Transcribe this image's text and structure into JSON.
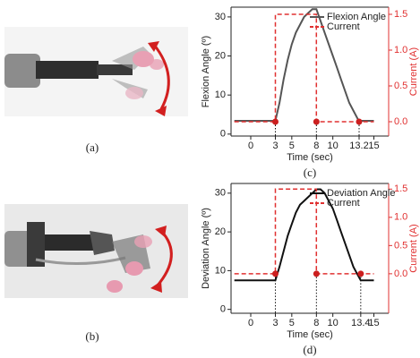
{
  "figure": {
    "photo_labels": [
      "(a)",
      "(b)"
    ]
  },
  "chart_data": [
    {
      "type": "line",
      "caption": "(c)",
      "x_label": "Time (sec)",
      "y_label": "Flexion Angle (º)",
      "y2_label": "Current (A)",
      "xlim": [
        -2.4,
        16.8
      ],
      "xticks": [
        0,
        3,
        5,
        8,
        10,
        13.2,
        15
      ],
      "ylim": [
        -0.5,
        32.5
      ],
      "yticks": [
        0,
        10,
        20,
        30
      ],
      "y2lim": [
        -0.2,
        1.6
      ],
      "y2ticks": [
        {
          "value": 0,
          "label": "0.0"
        },
        0.5,
        {
          "value": 1,
          "label": "1.0"
        },
        1.5
      ],
      "legend": "upper right",
      "series": [
        {
          "name": "Flexion Angle",
          "color": "#555555",
          "dash": false,
          "x": [
            -2,
            3,
            3.5,
            4,
            4.5,
            5,
            5.5,
            6,
            6.5,
            7,
            7.5,
            8,
            8.5,
            9,
            9.5,
            10,
            10.5,
            11,
            11.5,
            12,
            12.5,
            13,
            13.2,
            14,
            15
          ],
          "values": [
            3.4,
            3.4,
            8,
            14,
            19,
            23,
            26,
            28,
            30,
            31,
            32,
            32,
            29,
            26,
            23,
            20,
            17,
            14,
            11,
            8,
            6,
            4,
            3.4,
            3.4,
            3.4
          ]
        },
        {
          "name": "Current",
          "color": "#e03030",
          "dash": true,
          "axis": "y2",
          "x": [
            -2,
            3,
            3,
            8,
            8,
            15
          ],
          "values": [
            0,
            0,
            1.5,
            1.5,
            0,
            0
          ]
        }
      ],
      "markers": {
        "color": "#cc1f1f",
        "axis": "y2",
        "x": [
          3,
          8,
          13.2
        ],
        "values": [
          0,
          0,
          0
        ]
      }
    },
    {
      "type": "line",
      "caption": "(d)",
      "x_label": "Time (sec)",
      "y_label": "Deviation Angle (º)",
      "y2_label": "Current (A)",
      "xlim": [
        -2.4,
        16.8
      ],
      "xticks": [
        0,
        3,
        5,
        8,
        10,
        13.4,
        15
      ],
      "ylim": [
        -1,
        32.5
      ],
      "yticks": [
        0,
        10,
        20,
        30
      ],
      "y2lim": [
        -0.7,
        1.6
      ],
      "y2ticks": [
        {
          "value": 0,
          "label": "0.0"
        },
        0.5,
        {
          "value": 1,
          "label": "1.0"
        },
        1.5
      ],
      "legend": "upper right",
      "series": [
        {
          "name": "Deviation Angle",
          "color": "#111111",
          "dash": false,
          "x": [
            -2,
            3,
            3.5,
            4,
            4.5,
            5,
            5.5,
            6,
            6.5,
            7,
            7.5,
            8,
            8.5,
            9,
            9.5,
            10,
            10.5,
            11,
            11.5,
            12,
            12.5,
            13,
            13.4,
            14,
            15
          ],
          "values": [
            7.5,
            7.5,
            11,
            15,
            19,
            22,
            25,
            27,
            28,
            29,
            30,
            31,
            31,
            30,
            28,
            26,
            23,
            20,
            17,
            14,
            11,
            9,
            7.5,
            7.5,
            7.5
          ]
        },
        {
          "name": "Current",
          "color": "#e03030",
          "dash": true,
          "axis": "y2",
          "x": [
            -2,
            3,
            3,
            8,
            8,
            15
          ],
          "values": [
            0,
            0,
            1.5,
            1.5,
            0,
            0
          ]
        }
      ],
      "markers": {
        "color": "#cc1f1f",
        "axis": "y2",
        "x": [
          3,
          8,
          13.4
        ],
        "values": [
          0,
          0,
          0
        ]
      }
    }
  ]
}
